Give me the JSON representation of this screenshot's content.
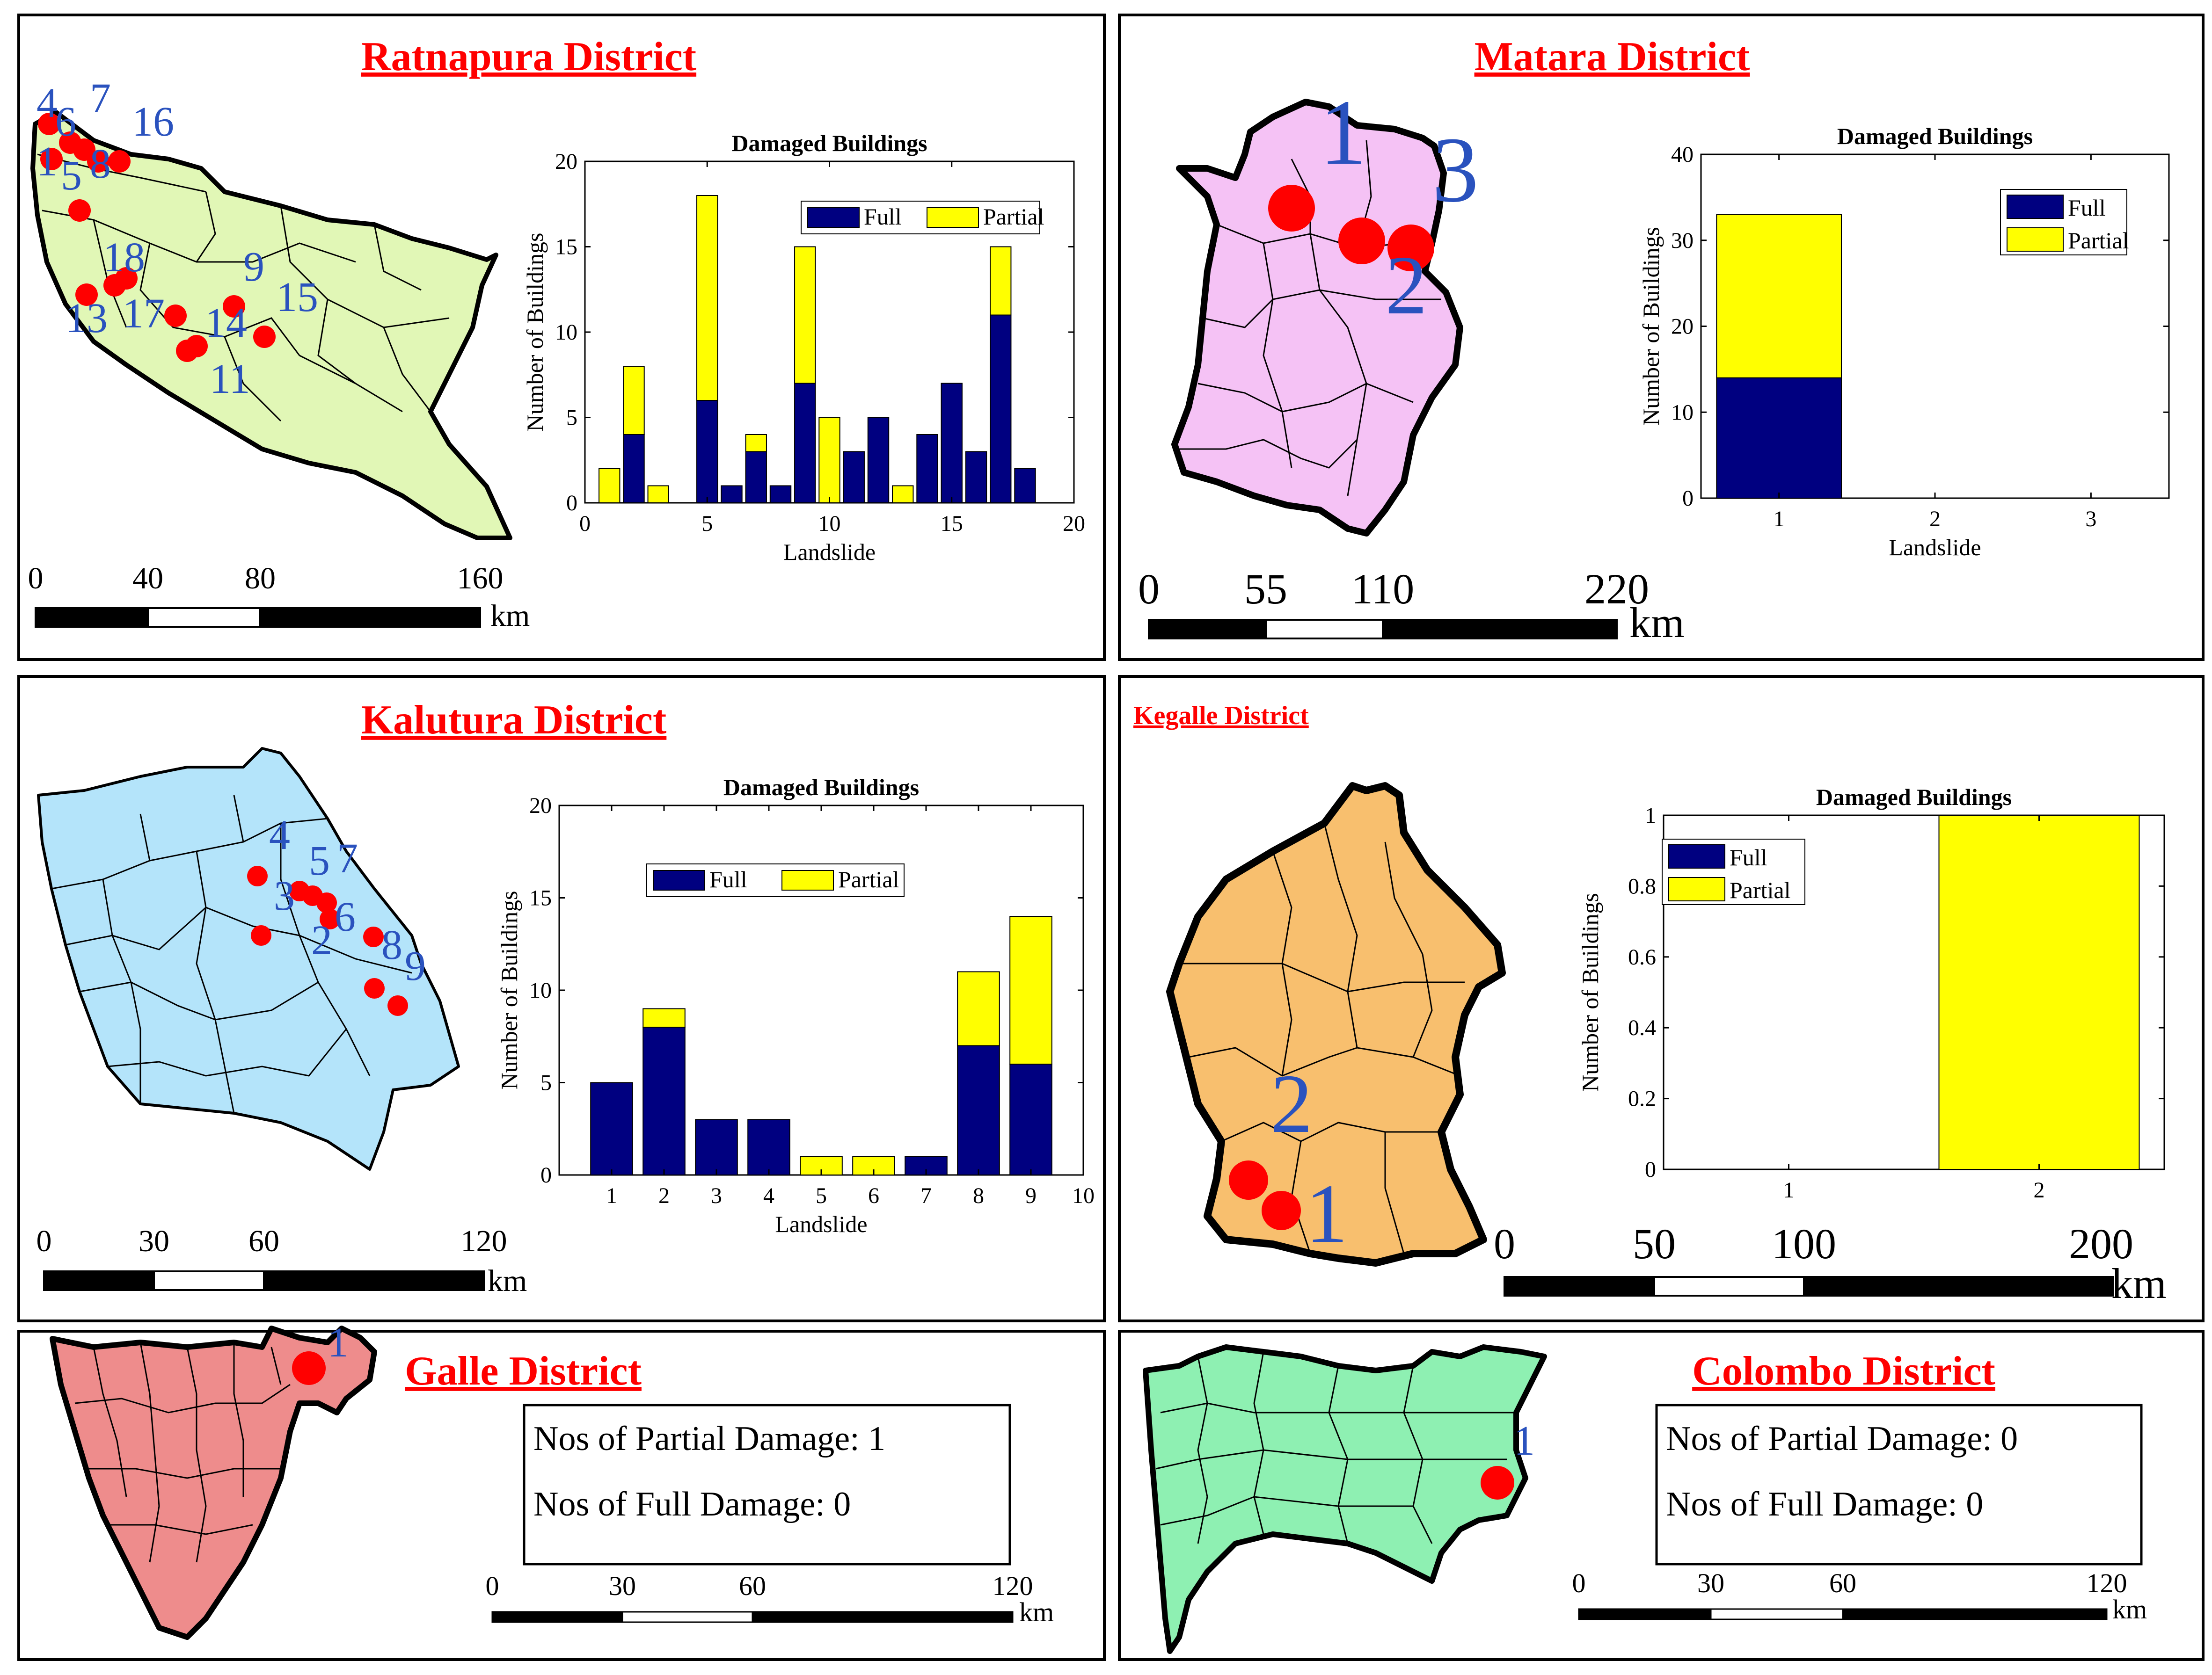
{
  "colors": {
    "title": "#ff0000",
    "full": "#000080",
    "partial": "#ffff00",
    "marker": "#ff0000",
    "label": "#2a52be",
    "map_ratnapura": "#e1f7b6",
    "map_matara": "#f5c2f5",
    "map_kalutura": "#b4e4fa",
    "map_kegalle": "#f8bf6e",
    "map_galle": "#ee8c8c",
    "map_colombo": "#8ef0b2"
  },
  "panels": {
    "ratnapura": {
      "title": "Ratnapura District",
      "map_labels": [
        "4",
        "6",
        "7",
        "16",
        "1",
        "5",
        "8",
        "18",
        "9",
        "15",
        "13",
        "17",
        "14",
        "11"
      ],
      "scale": {
        "ticks": [
          "0",
          "40",
          "80",
          "160"
        ],
        "unit": "km"
      }
    },
    "matara": {
      "title": "Matara District",
      "map_labels": [
        "1",
        "3",
        "2"
      ],
      "scale": {
        "ticks": [
          "0",
          "55",
          "110",
          "220"
        ],
        "unit": "km"
      }
    },
    "kalutura": {
      "title": "Kalutura District",
      "map_labels": [
        "4",
        "5",
        "7",
        "3",
        "6",
        "2",
        "8",
        "9"
      ],
      "scale": {
        "ticks": [
          "0",
          "30",
          "60",
          "120"
        ],
        "unit": "km"
      }
    },
    "kegalle": {
      "title": "Kegalle District",
      "map_labels": [
        "2",
        "1"
      ],
      "scale": {
        "ticks": [
          "0",
          "50",
          "100",
          "200"
        ],
        "unit": "km"
      }
    },
    "galle": {
      "title": "Galle District",
      "map_labels": [
        "1"
      ],
      "info": [
        "Nos of Partial Damage: 1",
        "Nos of Full Damage: 0"
      ],
      "scale": {
        "ticks": [
          "0",
          "30",
          "60",
          "120"
        ],
        "unit": "km"
      }
    },
    "colombo": {
      "title": "Colombo District",
      "map_labels": [
        "1"
      ],
      "info": [
        "Nos of Partial Damage: 0",
        "Nos of Full Damage: 0"
      ],
      "scale": {
        "ticks": [
          "0",
          "30",
          "60",
          "120"
        ],
        "unit": "km"
      }
    }
  },
  "chart_data": [
    {
      "type": "bar",
      "stacked": true,
      "district": "Ratnapura",
      "title": "Damaged Buildings",
      "xlabel": "Landslide",
      "ylabel": "Number of Buildings",
      "categories": [
        1,
        2,
        3,
        5,
        6,
        7,
        8,
        9,
        10,
        11,
        12,
        13,
        14,
        15,
        16,
        17,
        18
      ],
      "series": [
        {
          "name": "Full",
          "values": [
            0,
            4,
            0,
            6,
            1,
            3,
            1,
            7,
            0,
            3,
            5,
            0,
            4,
            7,
            3,
            11,
            2
          ]
        },
        {
          "name": "Partial",
          "values": [
            2,
            4,
            1,
            12,
            0,
            1,
            0,
            8,
            5,
            0,
            0,
            1,
            0,
            0,
            0,
            4,
            0
          ]
        }
      ],
      "xlim": [
        0,
        20
      ],
      "ylim": [
        0,
        20
      ],
      "xticks": [
        "0",
        "5",
        "10",
        "15",
        "20"
      ],
      "yticks": [
        "0",
        "5",
        "10",
        "15",
        "20"
      ],
      "legend": "top-right"
    },
    {
      "type": "bar",
      "stacked": true,
      "district": "Matara",
      "title": "Damaged Buildings",
      "xlabel": "Landslide",
      "ylabel": "Number of Buildings",
      "categories": [
        1,
        2,
        3
      ],
      "series": [
        {
          "name": "Full",
          "values": [
            14,
            0,
            0
          ]
        },
        {
          "name": "Partial",
          "values": [
            19,
            0,
            0
          ]
        }
      ],
      "xlim": [
        0.5,
        3.5
      ],
      "ylim": [
        0,
        40
      ],
      "xticks": [
        "1",
        "2",
        "3"
      ],
      "yticks": [
        "0",
        "10",
        "20",
        "30",
        "40"
      ],
      "legend": "top-right"
    },
    {
      "type": "bar",
      "stacked": true,
      "district": "Kalutura",
      "title": "Damaged Buildings",
      "xlabel": "Landslide",
      "ylabel": "Number of Buildings",
      "categories": [
        1,
        2,
        3,
        4,
        5,
        6,
        7,
        8,
        9
      ],
      "series": [
        {
          "name": "Full",
          "values": [
            5,
            8,
            3,
            3,
            0,
            0,
            1,
            7,
            6
          ]
        },
        {
          "name": "Partial",
          "values": [
            0,
            1,
            0,
            0,
            1,
            1,
            0,
            4,
            8
          ]
        }
      ],
      "xlim": [
        0,
        10
      ],
      "ylim": [
        0,
        20
      ],
      "xticks": [
        "1",
        "2",
        "3",
        "4",
        "5",
        "6",
        "7",
        "8",
        "9",
        "10"
      ],
      "yticks": [
        "0",
        "5",
        "10",
        "15",
        "20"
      ],
      "legend": "top-center"
    },
    {
      "type": "bar",
      "stacked": true,
      "district": "Kegalle",
      "title": "Damaged Buildings",
      "xlabel": "",
      "ylabel": "Number of Buildings",
      "categories": [
        1,
        2
      ],
      "series": [
        {
          "name": "Full",
          "values": [
            0,
            0
          ]
        },
        {
          "name": "Partial",
          "values": [
            0,
            1
          ]
        }
      ],
      "xlim": [
        0.5,
        2.5
      ],
      "ylim": [
        0,
        1
      ],
      "xticks": [
        "1",
        "2"
      ],
      "yticks": [
        "0",
        "0.2",
        "0.4",
        "0.6",
        "0.8",
        "1"
      ],
      "legend": "top-left"
    }
  ]
}
